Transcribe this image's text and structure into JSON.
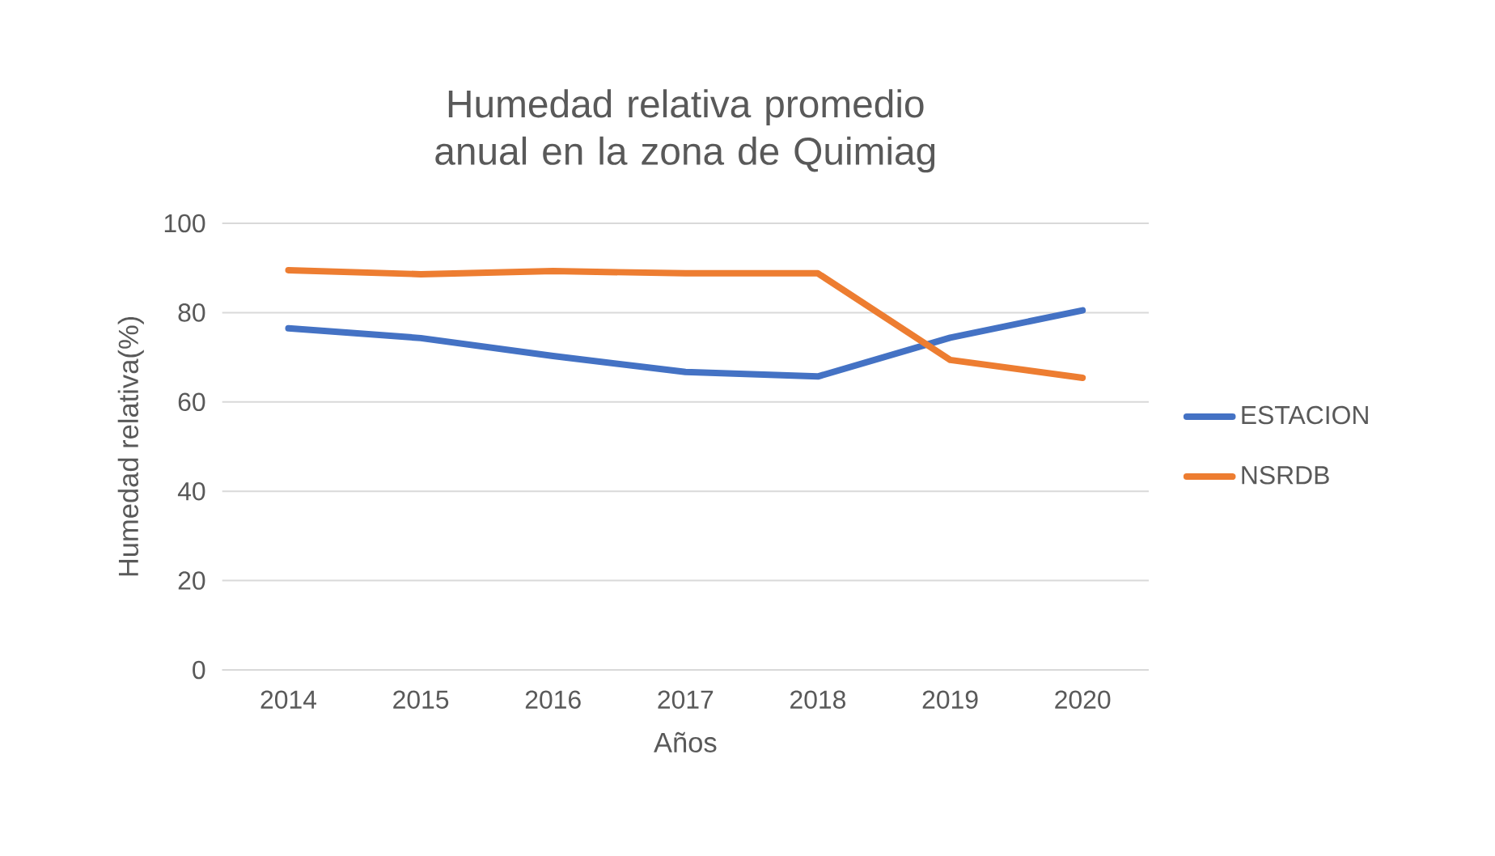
{
  "chart_data": {
    "type": "line",
    "title": "Humedad relativa promedio anual en la zona de Quimiag",
    "xlabel": "Años",
    "ylabel": "Humedad relativa(%)",
    "categories": [
      "2014",
      "2015",
      "2016",
      "2017",
      "2018",
      "2019",
      "2020"
    ],
    "series": [
      {
        "name": "ESTACION",
        "color": "#4472c4",
        "values": [
          76.5,
          74.3,
          70.3,
          66.7,
          65.7,
          74.4,
          80.5
        ]
      },
      {
        "name": "NSRDB",
        "color": "#ed7d31",
        "values": [
          89.5,
          88.6,
          89.3,
          88.8,
          88.8,
          69.4,
          65.4
        ]
      }
    ],
    "ylim": [
      0,
      100
    ],
    "yticks": [
      0,
      20,
      40,
      60,
      80,
      100
    ],
    "grid": "y",
    "legend": "right",
    "marker": "none",
    "line_style": "solid"
  }
}
